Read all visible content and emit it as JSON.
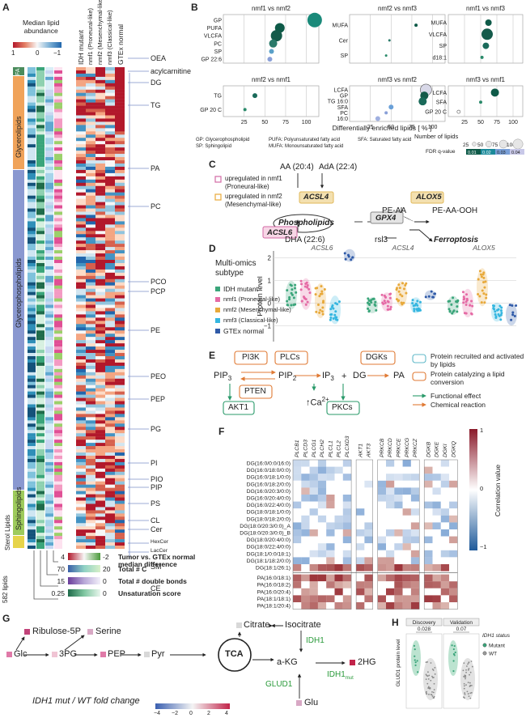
{
  "panel_letters": [
    "A",
    "B",
    "C",
    "D",
    "E",
    "F",
    "G",
    "H"
  ],
  "panelA": {
    "legend_title": "Median lipid\nabundance",
    "legend_ticks": [
      "1",
      "0",
      "−1"
    ],
    "column_headers": [
      "IDH mutant",
      "nmf1 (Proneural-like)",
      "nmf2 (Mesenchymal-like)",
      "nmf3 (Classical-like)",
      "GTEx normal"
    ],
    "classes": [
      {
        "name": "FA",
        "color": "#4a8c5c"
      },
      {
        "name": "Glycerolipids",
        "color": "#f0a35a"
      },
      {
        "name": "Glycerophospholipids",
        "color": "#8a98d0"
      },
      {
        "name": "Sphingolipids",
        "color": "#9ecb5c"
      },
      {
        "name": "Sterol Lipids",
        "color": "#e6d44a"
      }
    ],
    "subclasses": [
      "OEA",
      "acylcarnitine",
      "DG",
      "TG",
      "PA",
      "PC",
      "PCO",
      "PCP",
      "PE",
      "PEO",
      "PEP",
      "PG",
      "PI",
      "PIO",
      "PIP",
      "PS",
      "CL",
      "Cer",
      "HexCer",
      "LacCer",
      "SM",
      "CE"
    ],
    "lipid_count": "582 lipids",
    "bottom_legends": [
      {
        "low": "4",
        "high": "-2",
        "label": "Tumor vs. GTEx normal median difference"
      },
      {
        "low": "70",
        "high": "20",
        "label": "Total # C"
      },
      {
        "low": "15",
        "high": "0",
        "label": "Total # double bonds"
      },
      {
        "low": "0.25",
        "high": "0",
        "label": "Unsaturation score"
      }
    ]
  },
  "panelB": {
    "xlabel": "Differentially enriched lipids [ % ]",
    "xticks": [
      "25",
      "50",
      "75",
      "100"
    ],
    "subplots": [
      {
        "title": "nmf1 vs nmf2",
        "rows": [
          "GP",
          "PUFA",
          "VLCFA",
          "PC",
          "SP",
          "GP 22:6"
        ]
      },
      {
        "title": "nmf2 vs nmf3",
        "rows": [
          "MUFA",
          "Cer",
          "SP"
        ]
      },
      {
        "title": "nmf1 vs nmf3",
        "rows": [
          "MUFA",
          "VLCFA",
          "SP",
          "d18:1"
        ]
      },
      {
        "title": "nmf2 vs nmf1",
        "rows": [
          "TG",
          "GP 20 C"
        ]
      },
      {
        "title": "nmf3 vs nmf2",
        "rows": [
          "LCFA",
          "GP",
          "TG 16:0",
          "SFA",
          "PC",
          "16:0"
        ]
      },
      {
        "title": "nmf3 vs nmf1",
        "rows": [
          "LCFA",
          "SFA",
          "GP 20 C"
        ]
      }
    ],
    "footnotes": [
      "GP: Glycerophospholipid",
      "PUFA: Polyunsaturated fatty acid",
      "SFA: Saturated fatty acid",
      "SP: Sphingolipid",
      "MUFA: Monounsaturated fatty acid"
    ],
    "size_legend_title": "Number of lipids",
    "size_legend": [
      "25",
      "50",
      "75",
      "100"
    ],
    "color_legend_title": "FDR q-value",
    "color_legend": [
      "0.01",
      "0.02",
      "0.03",
      "0.04"
    ]
  },
  "panelC": {
    "legend": [
      "upregulated in nmf1 (Proneural-like)",
      "upregulated in nmf2 (Mesenchymal-like)"
    ],
    "nodes": {
      "aa": "AA (20:4)",
      "ada": "AdA (22:4)",
      "acsl4": "ACSL4",
      "alox5": "ALOX5",
      "phospholipids": "Phospholipids",
      "peaa": "PE-AA",
      "peaaooh": "PE-AA-OOH",
      "acsl6": "ACSL6",
      "gpx4": "GPX4",
      "dha": "DHA (22:6)",
      "rsl3": "rsl3",
      "ferroptosis": "Ferroptosis"
    }
  },
  "panelD": {
    "legend_title": "Multi-omics subtype",
    "legend": [
      {
        "name": "IDH mutant",
        "color": "#3aa57a"
      },
      {
        "name": "nmf1 (Proneural-like)",
        "color": "#e56aa5"
      },
      {
        "name": "nmf2 (Mesenchymal-like)",
        "color": "#e8a93a"
      },
      {
        "name": "nmf3 (Classical-like)",
        "color": "#35b6e0"
      },
      {
        "name": "GTEx normal",
        "color": "#2f5aa8"
      }
    ],
    "ylabel": "Protein level",
    "yticks": [
      "2",
      "1",
      "0",
      "−1"
    ],
    "genes": [
      "ACSL6",
      "ACSL4",
      "ALOX5"
    ]
  },
  "panelE": {
    "nodes": {
      "pi3k": "PI3K",
      "plcs": "PLCs",
      "dgks": "DGKs",
      "pip3": "PIP",
      "pip2": "PIP",
      "ip3": "IP",
      "plus": "+",
      "dg": "DG",
      "pa": "PA",
      "pten": "PTEN",
      "akt1": "AKT1",
      "ca": "Ca",
      "pkcs": "PKCs"
    },
    "subscripts": {
      "pip3": "3",
      "pip2": "2",
      "ip3": "3",
      "ca": "2+"
    },
    "legend": [
      "Protein recruited and activated by lipids",
      "Protein catalyzing a lipid conversion",
      "Functional effect",
      "Chemical reaction"
    ]
  },
  "panelF": {
    "genes": [
      "PLCB1",
      "PLCD3",
      "PLCG1",
      "PLCH2",
      "PLCL1",
      "PLCL2",
      "PLCXD3",
      "AKT1",
      "AKT3",
      "PRKCB",
      "PRKCD",
      "PRKCE",
      "PRKCG",
      "PRKCZ",
      "DGKB",
      "DGKE",
      "DGKI",
      "DGKQ"
    ],
    "rows": [
      "DG(16:0/0:0/16:0)",
      "DG(16:0/18:0/0:0)",
      "DG(16:0/18:1/0:0)",
      "DG(16:0/18:2/0:0)",
      "DG(16:0/20:3/0:0)",
      "DG(16:0/20:4/0:0)",
      "DG(16:0/22:4/0:0)",
      "DG(18:0/18:1/0:0)",
      "DG(18:0/18:2/0:0)",
      "DG(18:0/20:3/0:0)_A",
      "DG(18:0/20:3/0:0)_B",
      "DG(18:0/20:4/0:0)",
      "DG(18:0/22:4/0:0)",
      "DG(18:1/0:0/18:1)",
      "DG(18:1/18:2/0:0)",
      "DG(18:1/26:1)",
      "PA(16:0/18:1)",
      "PA(16:0/18:2)",
      "PA(16:0/20:4)",
      "PA(18:1/18:1)",
      "PA(18:1/20:4)"
    ],
    "groups": [
      "Phospho-lipase C",
      "Akt kinase",
      "Protein kinase C",
      "DG kinase"
    ],
    "colorbar_ticks": [
      "1",
      "0",
      "−1"
    ],
    "colorbar_label": "Correlation value"
  },
  "panelG": {
    "nodes": {
      "ribulose": "Ribulose-5P",
      "serine": "Serine",
      "glc": "Glc",
      "pg3": "3PG",
      "pep": "PEP",
      "pyr": "Pyr",
      "tca": "TCA",
      "citrate": "Citrate",
      "isocitrate": "Isocitrate",
      "idh1": "IDH1",
      "akg": "a-KG",
      "hg2": "2HG",
      "glud1": "GLUD1",
      "idh1mut": "IDH1",
      "mut": "mut",
      "glu": "Glu"
    },
    "colorbar_title": "IDH1 mut / WT fold change",
    "colorbar_ticks": [
      "−4",
      "−2",
      "0",
      "2",
      "4"
    ]
  },
  "panelH": {
    "ylabel": "GLUD1 protein level",
    "facets": [
      "Discovery",
      "Validation"
    ],
    "pvalues": [
      "0.028",
      "0.07"
    ],
    "legend_title": "IDH1 status",
    "legend": [
      {
        "name": "Mutant",
        "color": "#3aa57a"
      },
      {
        "name": "WT",
        "color": "#9a9a9a"
      }
    ]
  }
}
